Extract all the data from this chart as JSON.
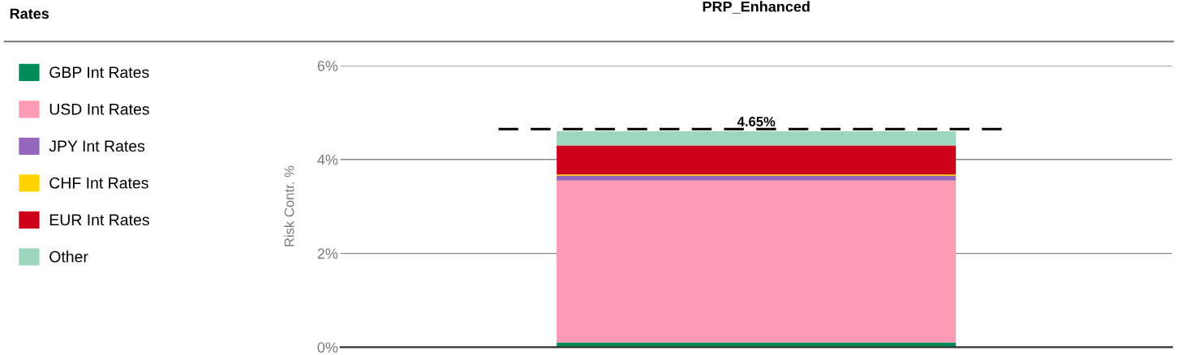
{
  "chart_data": {
    "type": "bar",
    "title": "PRP_Enhanced",
    "legend_title": "Rates",
    "ylabel": "Risk Contr. %",
    "categories": [
      null
    ],
    "stacked": true,
    "series": [
      {
        "name": "GBP Int Rates",
        "color": "#008c5a",
        "values": [
          0.1
        ]
      },
      {
        "name": "USD Int Rates",
        "color": "#fd9bb4",
        "values": [
          3.45
        ]
      },
      {
        "name": "JPY Int Rates",
        "color": "#9467bd",
        "values": [
          0.1
        ]
      },
      {
        "name": "CHF Int Rates",
        "color": "#ffd200",
        "values": [
          0.03
        ]
      },
      {
        "name": "EUR Int Rates",
        "color": "#cc0019",
        "values": [
          0.62
        ]
      },
      {
        "name": "Other",
        "color": "#9dd6bd",
        "values": [
          0.3
        ]
      }
    ],
    "ylim": [
      0,
      6
    ],
    "yticks": [
      {
        "value": 0,
        "label": "0%"
      },
      {
        "value": 2,
        "label": "2%"
      },
      {
        "value": 4,
        "label": "4%"
      },
      {
        "value": 6,
        "label": "6%"
      }
    ],
    "ref_lines": [
      {
        "axis": "y",
        "value": 4.65,
        "label": "4.65%",
        "color": "#000000",
        "line_style": "dashed"
      }
    ],
    "grid": "y",
    "legend": "left"
  }
}
